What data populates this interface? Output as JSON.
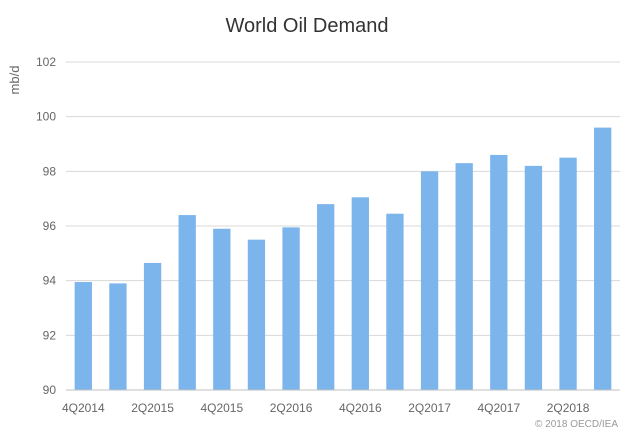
{
  "chart_data": {
    "type": "bar",
    "title": "World Oil Demand",
    "ylabel": "mb/d",
    "xlabel": "",
    "ylim": [
      90,
      102
    ],
    "yticks": [
      90,
      92,
      94,
      96,
      98,
      100,
      102
    ],
    "grid": true,
    "legend": "none",
    "bar_color": "#7cb5ec",
    "categories": [
      "4Q2014",
      "1Q2015",
      "2Q2015",
      "3Q2015",
      "4Q2015",
      "1Q2016",
      "2Q2016",
      "3Q2016",
      "4Q2016",
      "1Q2017",
      "2Q2017",
      "3Q2017",
      "4Q2017",
      "1Q2018",
      "2Q2018",
      "3Q2018"
    ],
    "x_tick_labels": [
      "4Q2014",
      "2Q2015",
      "4Q2015",
      "2Q2016",
      "4Q2016",
      "2Q2017",
      "4Q2017",
      "2Q2018"
    ],
    "values": [
      93.95,
      93.9,
      94.65,
      96.4,
      95.9,
      95.5,
      95.95,
      96.8,
      97.05,
      96.45,
      98.0,
      98.3,
      98.6,
      98.2,
      98.5,
      99.6
    ]
  },
  "credit": "© 2018 OECD/IEA"
}
